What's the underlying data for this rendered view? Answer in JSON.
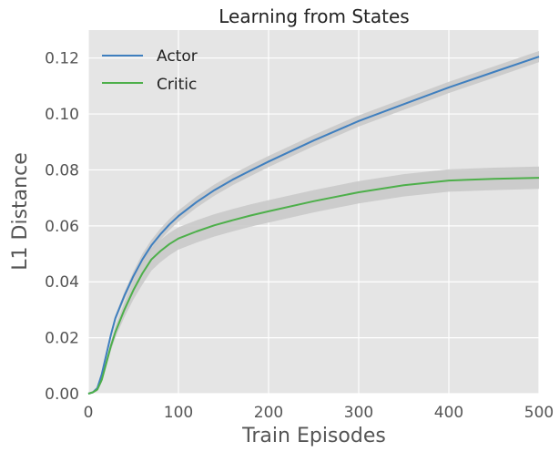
{
  "chart_data": {
    "type": "line",
    "title": "Learning from States",
    "xlabel": "Train Episodes",
    "ylabel": "L1 Distance",
    "xlim": [
      0,
      500
    ],
    "ylim": [
      0,
      0.13
    ],
    "xticks": [
      0,
      100,
      200,
      300,
      400,
      500
    ],
    "yticks": [
      0.0,
      0.02,
      0.04,
      0.06,
      0.08,
      0.1,
      0.12
    ],
    "xtick_labels": [
      "0",
      "100",
      "200",
      "300",
      "400",
      "500"
    ],
    "ytick_labels": [
      "0.00",
      "0.02",
      "0.04",
      "0.06",
      "0.08",
      "0.10",
      "0.12"
    ],
    "grid": true,
    "legend_position": "top-left",
    "colors": {
      "background": "#e5e5e5",
      "grid": "#ffffff",
      "band": "#c8c8c8"
    },
    "series": [
      {
        "name": "Actor",
        "color": "#3f7fbf",
        "x": [
          0,
          5,
          10,
          15,
          20,
          25,
          30,
          40,
          50,
          60,
          70,
          80,
          90,
          100,
          120,
          140,
          160,
          180,
          200,
          250,
          300,
          350,
          400,
          450,
          500
        ],
        "y": [
          0.0,
          0.0005,
          0.002,
          0.007,
          0.014,
          0.021,
          0.027,
          0.035,
          0.042,
          0.048,
          0.053,
          0.057,
          0.0605,
          0.0635,
          0.0685,
          0.0728,
          0.0765,
          0.0798,
          0.083,
          0.0905,
          0.0975,
          0.1035,
          0.1095,
          0.115,
          0.1205
        ],
        "band": 0.002
      },
      {
        "name": "Critic",
        "color": "#4daf4a",
        "x": [
          0,
          5,
          10,
          15,
          20,
          25,
          30,
          40,
          50,
          60,
          70,
          80,
          90,
          100,
          120,
          140,
          160,
          180,
          200,
          250,
          300,
          350,
          400,
          450,
          500
        ],
        "y": [
          0.0,
          0.0005,
          0.0015,
          0.005,
          0.011,
          0.017,
          0.022,
          0.03,
          0.037,
          0.043,
          0.048,
          0.051,
          0.0535,
          0.0555,
          0.058,
          0.0602,
          0.062,
          0.0637,
          0.0652,
          0.0688,
          0.072,
          0.0745,
          0.0762,
          0.0768,
          0.0772
        ],
        "band": 0.004
      }
    ]
  }
}
